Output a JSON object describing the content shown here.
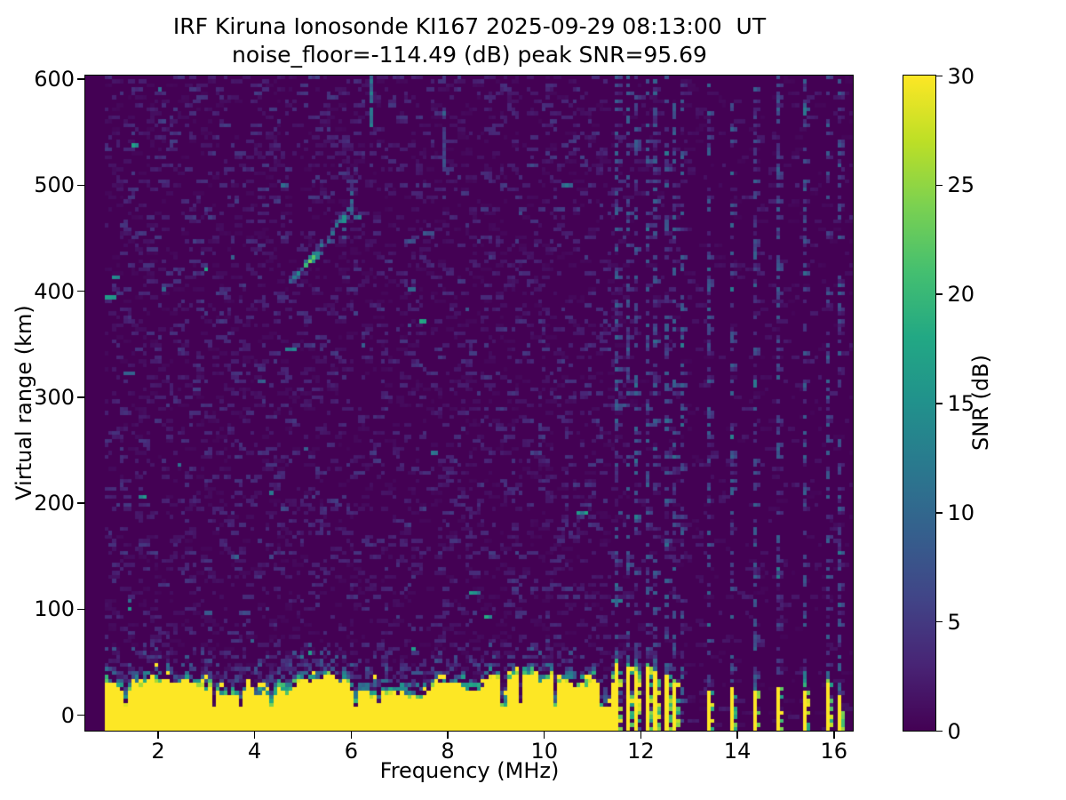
{
  "chart_data": {
    "type": "heatmap",
    "title": "IRF Kiruna Ionosonde KI167 2025-09-29 08:13:00  UT",
    "subtitle": "noise_floor=-114.49 (dB) peak SNR=95.69",
    "xlabel": "Frequency (MHz)",
    "ylabel": "Virtual range (km)",
    "x_range": [
      0.5,
      16.4
    ],
    "y_range": [
      -15,
      603
    ],
    "x_ticks": [
      2,
      4,
      6,
      8,
      10,
      12,
      14,
      16
    ],
    "y_ticks": [
      0,
      100,
      200,
      300,
      400,
      500,
      600
    ],
    "grid": false,
    "colorbar": {
      "label": "SNR (dB)",
      "ticks": [
        0,
        5,
        10,
        15,
        20,
        25,
        30
      ],
      "range": [
        0,
        30
      ],
      "position": "right"
    },
    "colormap": {
      "name": "viridis",
      "stops": [
        {
          "t": 0.0,
          "color": "#440154"
        },
        {
          "t": 0.1,
          "color": "#482475"
        },
        {
          "t": 0.2,
          "color": "#414487"
        },
        {
          "t": 0.3,
          "color": "#355f8d"
        },
        {
          "t": 0.4,
          "color": "#2a788e"
        },
        {
          "t": 0.5,
          "color": "#21918c"
        },
        {
          "t": 0.6,
          "color": "#22a884"
        },
        {
          "t": 0.7,
          "color": "#44bf70"
        },
        {
          "t": 0.8,
          "color": "#7ad151"
        },
        {
          "t": 0.9,
          "color": "#bddf26"
        },
        {
          "t": 1.0,
          "color": "#fde725"
        }
      ]
    },
    "heatmap_grid": {
      "nx": 200,
      "ny": 164,
      "seed": 7
    },
    "features": {
      "no_data_below_mhz": 0.93,
      "background_noise": {
        "x_range": [
          0.93,
          11.68
        ],
        "density": 0.3,
        "db": [
          0.5,
          4.5
        ],
        "bright_outlier_prob": 0.02,
        "bright_db": [
          5,
          12
        ],
        "very_bright_prob": 0.003,
        "very_bright_db": [
          13,
          17
        ]
      },
      "quiet_noise": {
        "x_range": [
          11.68,
          16.4
        ],
        "density": 0.1,
        "db": [
          0.4,
          2.6
        ]
      },
      "ground_clutter_band": {
        "x_range": [
          0.93,
          11.45
        ],
        "solid_db": 30,
        "top_km_mean": 24,
        "top_km_max": 36,
        "top_km_min": 12,
        "notch_prob": 0.08,
        "notch_top_km": 4,
        "transition_km": [
          8,
          24
        ],
        "sparse_above_km": 14
      },
      "interference_columns": {
        "freqs_mhz": [
          11.55,
          11.73,
          11.92,
          12.12,
          12.32,
          12.52,
          12.72,
          12.9,
          13.38,
          13.88,
          14.38,
          14.88,
          15.38,
          15.86,
          16.15
        ],
        "speckle_density": 0.36,
        "db": [
          2.5,
          9.5
        ]
      },
      "interference_bars": [
        {
          "f": 11.55,
          "top_km": 46
        },
        {
          "f": 11.73,
          "top_km": 44
        },
        {
          "f": 11.92,
          "top_km": 40
        },
        {
          "f": 12.12,
          "top_km": 42
        },
        {
          "f": 12.32,
          "top_km": 38
        },
        {
          "f": 12.52,
          "top_km": 34
        },
        {
          "f": 12.72,
          "top_km": 30
        },
        {
          "f": 13.38,
          "top_km": 22
        },
        {
          "f": 13.88,
          "top_km": 25
        },
        {
          "f": 14.38,
          "top_km": 20
        },
        {
          "f": 14.88,
          "top_km": 26
        },
        {
          "f": 15.38,
          "top_km": 22
        },
        {
          "f": 15.86,
          "top_km": 28
        },
        {
          "f": 16.15,
          "top_km": 17
        }
      ],
      "bar_cap_km": 20,
      "echo_trace": {
        "points": [
          {
            "f": 4.75,
            "km": 408,
            "db": 9
          },
          {
            "f": 4.85,
            "km": 413,
            "db": 12
          },
          {
            "f": 4.95,
            "km": 418,
            "db": 14
          },
          {
            "f": 5.05,
            "km": 423,
            "db": 20
          },
          {
            "f": 5.12,
            "km": 427,
            "db": 24
          },
          {
            "f": 5.2,
            "km": 431,
            "db": 22
          },
          {
            "f": 5.3,
            "km": 436,
            "db": 14
          },
          {
            "f": 5.42,
            "km": 442,
            "db": 12
          },
          {
            "f": 5.52,
            "km": 447,
            "db": 10
          },
          {
            "f": 5.62,
            "km": 453,
            "db": 11
          },
          {
            "f": 5.72,
            "km": 460,
            "db": 12
          },
          {
            "f": 5.8,
            "km": 466,
            "db": 13
          },
          {
            "f": 5.88,
            "km": 471,
            "db": 11
          },
          {
            "f": 5.97,
            "km": 476,
            "db": 10
          }
        ]
      },
      "streaks": [
        {
          "f": 5.85,
          "km": [
            450,
            478
          ],
          "db": 13
        },
        {
          "f": 6.03,
          "km": [
            474,
            492
          ],
          "db": 9
        },
        {
          "f": 6.44,
          "km": [
            552,
            600
          ],
          "db": 12
        },
        {
          "f": 7.9,
          "km": [
            518,
            566
          ],
          "db": 8
        }
      ]
    }
  }
}
